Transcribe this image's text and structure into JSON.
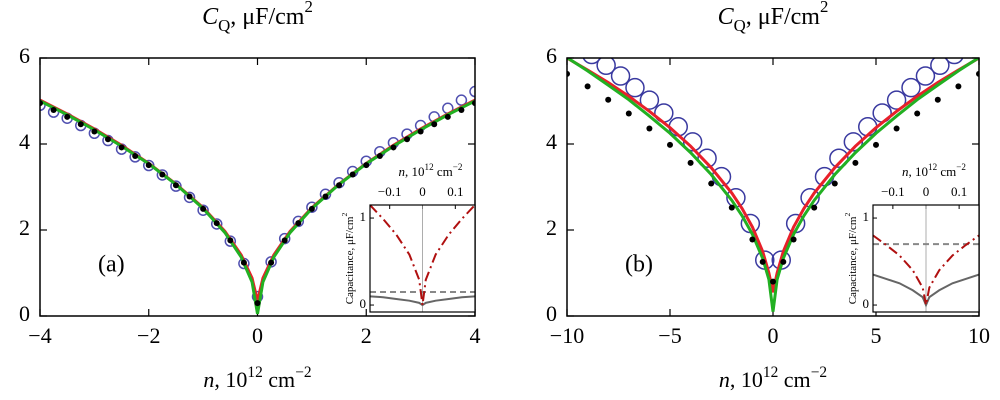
{
  "chart_data": [
    {
      "type": "line",
      "title": [
        "C",
        "Q",
        ", μF/cm",
        "2"
      ],
      "x_label": [
        "n",
        ", 10",
        "12",
        " cm",
        "−2"
      ],
      "panel_label": "(a)",
      "xlim": [
        -4,
        4
      ],
      "ylim": [
        0,
        6
      ],
      "xticks": [
        {
          "value": -4,
          "label": "−4"
        },
        {
          "value": -2,
          "label": "−2"
        },
        0,
        2,
        4
      ],
      "yticks": [
        0,
        2,
        4,
        6
      ],
      "series": [
        {
          "style": "open-circle",
          "color": "#5050b0",
          "x": [
            -4,
            -3.75,
            -3.5,
            -3.25,
            -3,
            -2.75,
            -2.5,
            -2.25,
            -2,
            -1.75,
            -1.5,
            -1.25,
            -1,
            -0.75,
            -0.5,
            -0.25,
            0,
            0.25,
            0.5,
            0.75,
            1,
            1.25,
            1.5,
            1.75,
            2,
            2.25,
            2.5,
            2.75,
            3,
            3.25,
            3.5,
            3.75,
            4
          ],
          "values": [
            4.9,
            4.74,
            4.6,
            4.43,
            4.25,
            4.08,
            3.88,
            3.7,
            3.5,
            3.28,
            3.02,
            2.76,
            2.46,
            2.14,
            1.74,
            1.22,
            0.45,
            1.26,
            1.8,
            2.2,
            2.53,
            2.83,
            3.1,
            3.36,
            3.6,
            3.82,
            4.03,
            4.23,
            4.43,
            4.63,
            4.83,
            5.02,
            5.22
          ]
        },
        {
          "style": "line",
          "color": "#e8202a",
          "x": [
            -4,
            -3.5,
            -3,
            -2.5,
            -2,
            -1.5,
            -1,
            -0.6,
            -0.3,
            -0.1,
            0,
            0.1,
            0.3,
            0.6,
            1,
            1.5,
            2,
            2.5,
            3,
            3.5,
            4
          ],
          "values": [
            5.02,
            4.7,
            4.35,
            3.97,
            3.55,
            3.07,
            2.52,
            1.97,
            1.42,
            0.88,
            0.35,
            0.88,
            1.42,
            1.97,
            2.52,
            3.07,
            3.55,
            3.97,
            4.35,
            4.7,
            5.02
          ]
        },
        {
          "style": "line",
          "color": "#22b022",
          "x": [
            -4,
            -3.5,
            -3,
            -2.5,
            -2,
            -1.5,
            -1,
            -0.6,
            -0.3,
            -0.1,
            0,
            0.1,
            0.3,
            0.6,
            1,
            1.5,
            2,
            2.5,
            3,
            3.5,
            4
          ],
          "values": [
            5,
            4.68,
            4.33,
            3.95,
            3.54,
            3.06,
            2.5,
            1.94,
            1.37,
            0.79,
            0.05,
            0.79,
            1.37,
            1.94,
            2.5,
            3.06,
            3.54,
            3.95,
            4.33,
            4.68,
            5
          ]
        },
        {
          "style": "dot",
          "color": "#000000",
          "x": [
            -4,
            -3.75,
            -3.5,
            -3.25,
            -3,
            -2.75,
            -2.5,
            -2.25,
            -2,
            -1.75,
            -1.5,
            -1.25,
            -1,
            -0.75,
            -0.5,
            -0.25,
            0,
            0.25,
            0.5,
            0.75,
            1,
            1.25,
            1.5,
            1.75,
            2,
            2.25,
            2.5,
            2.75,
            3,
            3.25,
            3.5,
            3.75,
            4
          ],
          "values": [
            4.95,
            4.79,
            4.63,
            4.46,
            4.29,
            4.11,
            3.92,
            3.72,
            3.51,
            3.29,
            3.04,
            2.78,
            2.49,
            2.16,
            1.76,
            1.24,
            0.3,
            1.24,
            1.76,
            2.16,
            2.49,
            2.78,
            3.04,
            3.29,
            3.51,
            3.72,
            3.92,
            4.11,
            4.29,
            4.46,
            4.63,
            4.79,
            4.95
          ]
        }
      ],
      "inset": {
        "x_label": [
          "n",
          ", 10",
          "12",
          " cm",
          "−2"
        ],
        "y_label": [
          "Capacitance, μF/cm",
          "2"
        ],
        "xlim": [
          -0.16,
          0.16
        ],
        "ylim": [
          -0.08,
          1.15
        ],
        "xticks": [
          {
            "value": -0.1,
            "label": "−0.1"
          },
          0,
          0.1
        ],
        "yticks": [
          0,
          1
        ],
        "series": [
          {
            "style": "solid",
            "color": "#666666",
            "x": [
              -0.16,
              -0.12,
              -0.08,
              -0.04,
              -0.01,
              0,
              0.01,
              0.04,
              0.08,
              0.12,
              0.16
            ],
            "values": [
              0.1,
              0.09,
              0.07,
              0.05,
              0.025,
              0,
              0.025,
              0.05,
              0.07,
              0.09,
              0.1
            ]
          },
          {
            "style": "dash",
            "color": "#888888",
            "x": [
              -0.16,
              0.16
            ],
            "values": [
              0.15,
              0.15
            ]
          },
          {
            "style": "dash-dot",
            "color": "#b01010",
            "x": [
              -0.16,
              -0.12,
              -0.08,
              -0.04,
              -0.01,
              0,
              0.01,
              0.04,
              0.08,
              0.12,
              0.16
            ],
            "values": [
              1.15,
              0.99,
              0.81,
              0.58,
              0.29,
              0,
              0.29,
              0.58,
              0.81,
              0.99,
              1.15
            ]
          }
        ]
      }
    },
    {
      "type": "line",
      "title": [
        "C",
        "Q",
        ", μF/cm",
        "2"
      ],
      "x_label": [
        "n",
        ", 10",
        "12",
        " cm",
        "−2"
      ],
      "panel_label": "(b)",
      "xlim": [
        -10,
        10
      ],
      "ylim": [
        0,
        6
      ],
      "xticks": [
        {
          "value": -10,
          "label": "−10"
        },
        {
          "value": -5,
          "label": "−5"
        },
        0,
        5,
        10
      ],
      "yticks": [
        0,
        2,
        4,
        6
      ],
      "series": [
        {
          "style": "open-circle-large",
          "color": "#3a3aa0",
          "x": [
            -9.5,
            -8.8,
            -8.1,
            -7.4,
            -6.7,
            -6,
            -5.3,
            -4.6,
            -3.9,
            -3.2,
            -2.5,
            -1.8,
            -1.1,
            -0.4,
            0.4,
            1.1,
            1.8,
            2.5,
            3.2,
            3.9,
            4.6,
            5.3,
            6,
            6.7,
            7.4,
            8.1,
            8.8,
            9.5
          ],
          "values": [
            6.32,
            6.08,
            5.83,
            5.58,
            5.31,
            5.02,
            4.72,
            4.4,
            4.05,
            3.67,
            3.24,
            2.75,
            2.15,
            1.3,
            1.3,
            2.15,
            2.75,
            3.24,
            3.67,
            4.05,
            4.4,
            4.72,
            5.02,
            5.31,
            5.58,
            5.83,
            6.08,
            6.32
          ]
        },
        {
          "style": "line",
          "color": "#e8202a",
          "x": [
            -10,
            -9,
            -8,
            -7,
            -6,
            -5,
            -4,
            -3,
            -2,
            -1.5,
            -1,
            -0.5,
            -0.2,
            0,
            0.2,
            0.5,
            1,
            1.5,
            2,
            3,
            4,
            5,
            6,
            7,
            8,
            9,
            10
          ],
          "values": [
            6,
            5.72,
            5.43,
            5.11,
            4.76,
            4.38,
            3.95,
            3.45,
            2.86,
            2.5,
            2.07,
            1.5,
            1,
            0.55,
            1,
            1.5,
            2.07,
            2.5,
            2.86,
            3.45,
            3.95,
            4.38,
            4.76,
            5.11,
            5.43,
            5.72,
            6
          ]
        },
        {
          "style": "line",
          "color": "#22b022",
          "x": [
            -10,
            -9,
            -8,
            -7,
            -6,
            -5,
            -4,
            -3,
            -2,
            -1.5,
            -1,
            -0.5,
            -0.2,
            0,
            0.2,
            0.5,
            1,
            1.5,
            2,
            3,
            4,
            5,
            6,
            7,
            8,
            9,
            10
          ],
          "values": [
            6.01,
            5.7,
            5.37,
            5.03,
            4.65,
            4.25,
            3.8,
            3.29,
            2.69,
            2.33,
            1.9,
            1.34,
            0.85,
            0.1,
            0.85,
            1.34,
            1.9,
            2.33,
            2.69,
            3.29,
            3.8,
            4.25,
            4.65,
            5.03,
            5.37,
            5.7,
            6.01
          ]
        },
        {
          "style": "dot",
          "color": "#000000",
          "x": [
            -10,
            -9,
            -8,
            -7,
            -6,
            -5,
            -4,
            -3,
            -2,
            -1,
            -0.5,
            0,
            0.5,
            1,
            2,
            3,
            4,
            5,
            6,
            7,
            8,
            9,
            10
          ],
          "values": [
            5.63,
            5.34,
            5.03,
            4.71,
            4.36,
            3.98,
            3.56,
            3.08,
            2.52,
            1.78,
            1.26,
            0.8,
            1.26,
            1.78,
            2.52,
            3.08,
            3.56,
            3.98,
            4.36,
            4.71,
            5.03,
            5.34,
            5.63
          ]
        }
      ],
      "inset": {
        "x_label": [
          "n",
          ", 10",
          "12",
          " cm",
          "−2"
        ],
        "y_label": [
          "Capacitance, μF/cm",
          "2"
        ],
        "xlim": [
          -0.16,
          0.16
        ],
        "ylim": [
          -0.08,
          1.15
        ],
        "xticks": [
          {
            "value": -0.1,
            "label": "−0.1"
          },
          0,
          0.1
        ],
        "yticks": [
          0,
          1
        ],
        "series": [
          {
            "style": "solid",
            "color": "#666666",
            "x": [
              -0.16,
              -0.12,
              -0.08,
              -0.04,
              -0.01,
              0,
              0.01,
              0.04,
              0.08,
              0.12,
              0.16
            ],
            "values": [
              0.35,
              0.3,
              0.25,
              0.17,
              0.09,
              0,
              0.09,
              0.17,
              0.25,
              0.3,
              0.35
            ]
          },
          {
            "style": "dash",
            "color": "#888888",
            "x": [
              -0.16,
              0.16
            ],
            "values": [
              0.7,
              0.7
            ]
          },
          {
            "style": "dash-dot",
            "color": "#b01010",
            "x": [
              -0.16,
              -0.12,
              -0.08,
              -0.04,
              -0.01,
              0,
              0.01,
              0.04,
              0.08,
              0.12,
              0.16
            ],
            "values": [
              0.8,
              0.69,
              0.57,
              0.4,
              0.2,
              0,
              0.2,
              0.4,
              0.57,
              0.69,
              0.8
            ]
          }
        ]
      }
    }
  ]
}
